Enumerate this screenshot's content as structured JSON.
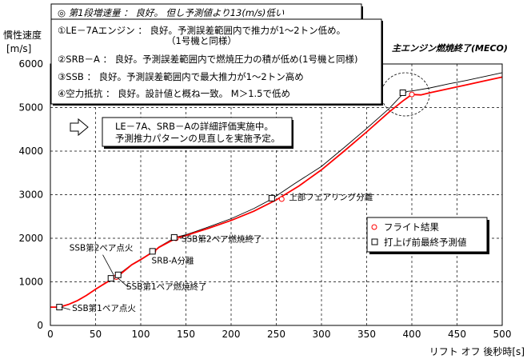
{
  "chart_data": {
    "type": "line",
    "title": "",
    "ylabel_lines": [
      "慣性速度",
      "[m/s]"
    ],
    "xlabel": "リフト オフ 後秒時[s]",
    "xlim": [
      0,
      500
    ],
    "ylim": [
      0,
      6000
    ],
    "xticks": [
      0,
      50,
      100,
      150,
      200,
      250,
      300,
      350,
      400,
      450,
      500
    ],
    "yticks": [
      0,
      1000,
      2000,
      3000,
      4000,
      5000,
      6000
    ],
    "grid": true,
    "legend_position": "right-middle",
    "series": [
      {
        "name": "フライト結果",
        "color": "#ff0000",
        "marker": "circle",
        "x": [
          0,
          10,
          20,
          30,
          40,
          50,
          60,
          70,
          73,
          80,
          90,
          100,
          110,
          115,
          120,
          130,
          139,
          150,
          160,
          175,
          200,
          225,
          250,
          275,
          300,
          325,
          350,
          375,
          390,
          400,
          410,
          420,
          440,
          460,
          480,
          500
        ],
        "y": [
          420,
          420,
          480,
          570,
          690,
          830,
          960,
          1080,
          1110,
          1220,
          1390,
          1510,
          1640,
          1700,
          1790,
          1900,
          2000,
          2060,
          2130,
          2230,
          2410,
          2620,
          2880,
          3200,
          3570,
          4000,
          4440,
          4900,
          5150,
          5300,
          5290,
          5340,
          5430,
          5520,
          5610,
          5700
        ]
      },
      {
        "name": "打上げ前最終予測値",
        "color": "#000000",
        "marker": "square",
        "x": [
          0,
          10,
          20,
          30,
          40,
          50,
          60,
          70,
          73,
          80,
          90,
          100,
          110,
          115,
          120,
          130,
          138,
          150,
          160,
          175,
          200,
          225,
          245,
          270,
          300,
          325,
          350,
          375,
          390,
          395,
          400,
          420,
          440,
          460,
          480,
          500
        ],
        "y": [
          420,
          420,
          480,
          570,
          690,
          830,
          960,
          1100,
          1150,
          1240,
          1400,
          1520,
          1650,
          1710,
          1800,
          1920,
          2020,
          2080,
          2150,
          2260,
          2450,
          2680,
          2900,
          3250,
          3650,
          4080,
          4520,
          4980,
          5310,
          5370,
          5380,
          5450,
          5540,
          5620,
          5710,
          5800
        ]
      }
    ],
    "markers": [
      {
        "series": 0,
        "x": 10,
        "y": 420
      },
      {
        "series": 0,
        "x": 73,
        "y": 1110
      },
      {
        "series": 0,
        "x": 114,
        "y": 1700
      },
      {
        "series": 0,
        "x": 139,
        "y": 2000
      },
      {
        "series": 0,
        "x": 256,
        "y": 2900
      },
      {
        "series": 0,
        "x": 400,
        "y": 5300
      },
      {
        "series": 1,
        "x": 10,
        "y": 420
      },
      {
        "series": 1,
        "x": 67,
        "y": 1080
      },
      {
        "series": 1,
        "x": 75,
        "y": 1160
      },
      {
        "series": 1,
        "x": 113,
        "y": 1700
      },
      {
        "series": 1,
        "x": 137,
        "y": 2020
      },
      {
        "series": 1,
        "x": 245,
        "y": 2920
      },
      {
        "series": 1,
        "x": 390,
        "y": 5340
      }
    ],
    "annotations": [
      {
        "text": "SSB第1ペア点火",
        "x": 24,
        "y": 330
      },
      {
        "text": "SSB第2ペア点火",
        "x": 21,
        "y": 1720
      },
      {
        "text": "SSB第1ペア燃焼終了",
        "x": 84,
        "y": 830
      },
      {
        "text": "SRB-A分離",
        "x": 112,
        "y": 1420
      },
      {
        "text": "SSB第2ペア燃焼終了",
        "x": 145,
        "y": 1920
      },
      {
        "text": "上部フェアリング分離",
        "x": 264,
        "y": 2880
      }
    ],
    "meco_label": "主エンジン燃焼終了(MECO)",
    "info_box": {
      "heading": "◎ 第1段増速量 ： 良好。 但し予測値より13(m/s)低い",
      "lines": [
        "①LE－7Aエンジン ： 良好。予測誤差範囲内で推力が1～2トン低め。",
        "（1号機と同様）",
        "②SRB－A ： 良好。予測誤差範囲内で燃焼圧力の積が低め(1号機と同様)",
        "③SSB ： 良好。予測誤差範囲内で最大推力が1～2トン高め",
        "④空力抵抗 ： 良好。設計値と概ね一致。 M＞1.5で低め"
      ]
    },
    "note_box": {
      "lines": [
        "LE－7A、SRB－Aの詳細評価実施中。",
        "予測推力パターンの見直しを実施予定。"
      ]
    }
  }
}
